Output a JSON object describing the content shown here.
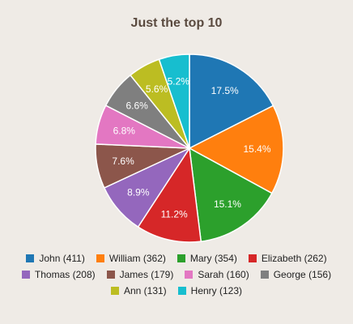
{
  "chart_data": {
    "type": "pie",
    "title": "Just the top 10",
    "legend_position": "bottom",
    "slices": [
      {
        "name": "John",
        "value": 411,
        "legend_label": "John (411)",
        "percent_label": "17.5%",
        "color": "#1f77b4"
      },
      {
        "name": "William",
        "value": 362,
        "legend_label": "William (362)",
        "percent_label": "15.4%",
        "color": "#ff7f0e"
      },
      {
        "name": "Mary",
        "value": 354,
        "legend_label": "Mary (354)",
        "percent_label": "15.1%",
        "color": "#2ca02c"
      },
      {
        "name": "Elizabeth",
        "value": 262,
        "legend_label": "Elizabeth (262)",
        "percent_label": "11.2%",
        "color": "#d62728"
      },
      {
        "name": "Thomas",
        "value": 208,
        "legend_label": "Thomas (208)",
        "percent_label": "8.9%",
        "color": "#9467bd"
      },
      {
        "name": "James",
        "value": 179,
        "legend_label": "James (179)",
        "percent_label": "7.6%",
        "color": "#8c564b"
      },
      {
        "name": "Sarah",
        "value": 160,
        "legend_label": "Sarah (160)",
        "percent_label": "6.8%",
        "color": "#e377c2"
      },
      {
        "name": "George",
        "value": 156,
        "legend_label": "George (156)",
        "percent_label": "6.6%",
        "color": "#7f7f7f"
      },
      {
        "name": "Ann",
        "value": 131,
        "legend_label": "Ann (131)",
        "percent_label": "5.6%",
        "color": "#bcbd22"
      },
      {
        "name": "Henry",
        "value": 123,
        "legend_label": "Henry (123)",
        "percent_label": "5.2%",
        "color": "#17becf"
      }
    ]
  }
}
